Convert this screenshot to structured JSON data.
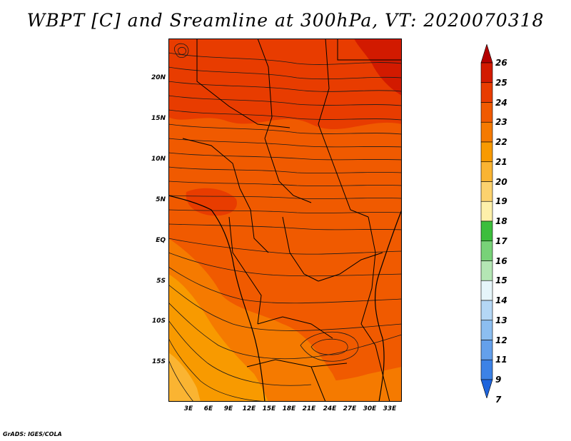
{
  "title": "WBPT [C] and Sreamline at 300hPa, VT: 2020070318",
  "credit": "GrADS: IGES/COLA",
  "map": {
    "lat_labels": [
      "20N",
      "15N",
      "10N",
      "5N",
      "EQ",
      "5S",
      "10S",
      "15S"
    ],
    "lon_labels": [
      "3E",
      "6E",
      "9E",
      "12E",
      "15E",
      "18E",
      "21E",
      "24E",
      "27E",
      "30E",
      "33E"
    ],
    "field": "wet-bulb potential temperature",
    "overlay": "streamlines"
  },
  "colorbar": {
    "labels": [
      "26",
      "25",
      "24",
      "23",
      "22",
      "21",
      "20",
      "19",
      "18",
      "17",
      "16",
      "15",
      "14",
      "13",
      "12",
      "11",
      "9",
      "7"
    ],
    "colors": [
      "#b40000",
      "#d21a00",
      "#e83c00",
      "#f05a00",
      "#f57a00",
      "#f89a00",
      "#fab432",
      "#fcd26e",
      "#fdf0aa",
      "#3cbe3c",
      "#78d278",
      "#b4e6b4",
      "#e6f5fa",
      "#b4d7f5",
      "#8cbef0",
      "#64a0eb",
      "#3c82e6",
      "#1e64dc"
    ]
  }
}
